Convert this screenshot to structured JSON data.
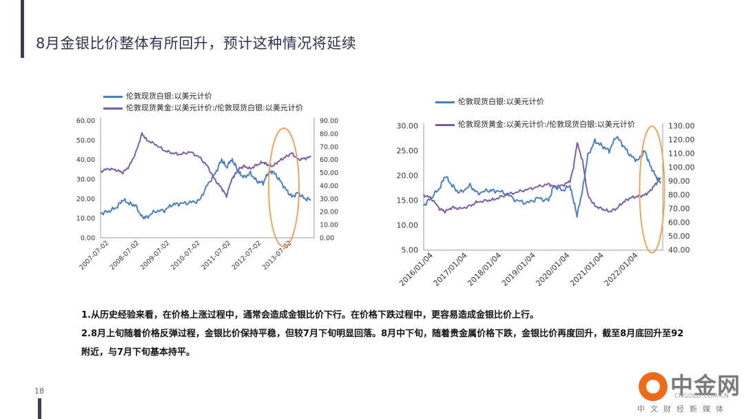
{
  "slide": {
    "title": "8月金银比价整体有所回升，预计这种情况将延续",
    "page_number": "18",
    "notes": [
      "1.从历史经验来看，在价格上涨过程中，通常会造成金银比价下行。在价格下跌过程中，更容易造成金银比价上行。",
      "2.8月上旬随着价格反弹过程，金银比价保持平稳，但较7月下旬明显回落。8月中下旬，随着贵金属价格下跌，金银比价再度回升，截至8月底回升至92附近，与7月下旬基本持平。"
    ]
  },
  "logo": {
    "name": "中金网",
    "url": "CNGOLD.COM.CN",
    "slogan": "中文财经新媒体"
  },
  "colors": {
    "silver_series": "#4a7ec2",
    "ratio_series": "#7b5ea6",
    "highlight_ellipse": "#f0a35c",
    "title": "#2c3550"
  },
  "chart_data": [
    {
      "id": "left",
      "type": "line",
      "legend": [
        "伦敦现货白银:以美元计价",
        "伦敦现货黄金:以美元计价:/伦敦现货白银:以美元计价"
      ],
      "x_tick_labels": [
        "2007-07-02",
        "2008-07-02",
        "2009-07-02",
        "2010-07-02",
        "2011-07-02",
        "2012-07-02",
        "2013-07-02"
      ],
      "x_range": [
        2007.5,
        2014.2
      ],
      "y_left": {
        "range": [
          0,
          60
        ],
        "ticks": [
          "0.00",
          "10.00",
          "20.00",
          "30.00",
          "40.00",
          "50.00",
          "60.00"
        ]
      },
      "y_right": {
        "range": [
          0,
          90
        ],
        "ticks": [
          "0.00",
          "10.00",
          "20.00",
          "30.00",
          "40.00",
          "50.00",
          "60.00",
          "70.00",
          "80.00",
          "90.00"
        ]
      },
      "grid": false,
      "legend_position": "top",
      "highlight": "ellipse around 2012-10 to 2013-09",
      "series": [
        {
          "name": "伦敦现货白银:以美元计价",
          "axis": "left",
          "x": [
            2007.5,
            2007.75,
            2008.0,
            2008.2,
            2008.4,
            2008.6,
            2008.8,
            2008.95,
            2009.2,
            2009.5,
            2009.75,
            2010.0,
            2010.3,
            2010.6,
            2010.85,
            2011.1,
            2011.3,
            2011.45,
            2011.6,
            2011.7,
            2011.85,
            2012.0,
            2012.2,
            2012.4,
            2012.6,
            2012.75,
            2012.9,
            2013.1,
            2013.3,
            2013.5,
            2013.7,
            2013.9,
            2014.1
          ],
          "y": [
            12.5,
            13.5,
            15.5,
            19.5,
            17.5,
            16.5,
            10.5,
            10.5,
            13.5,
            14,
            17,
            17.5,
            18,
            19,
            27,
            33,
            40,
            36,
            40,
            38,
            33,
            31,
            33,
            29,
            28,
            33,
            34,
            30,
            25,
            21,
            23,
            20,
            19.5
          ]
        },
        {
          "name": "伦敦现货黄金:以美元计价:/伦敦现货白银:以美元计价",
          "axis": "right",
          "x": [
            2007.5,
            2007.75,
            2008.0,
            2008.2,
            2008.4,
            2008.6,
            2008.8,
            2008.95,
            2009.2,
            2009.5,
            2009.75,
            2010.0,
            2010.3,
            2010.6,
            2010.85,
            2011.1,
            2011.3,
            2011.45,
            2011.6,
            2011.7,
            2011.85,
            2012.0,
            2012.2,
            2012.4,
            2012.6,
            2012.75,
            2012.9,
            2013.1,
            2013.3,
            2013.5,
            2013.7,
            2013.9,
            2014.1
          ],
          "y": [
            51,
            53,
            52,
            50,
            55,
            65,
            80,
            75,
            72,
            67,
            65,
            64,
            66,
            62,
            55,
            44,
            38,
            32,
            44,
            48,
            53,
            55,
            53,
            56,
            58,
            56,
            55,
            59,
            62,
            65,
            60,
            61,
            62
          ]
        }
      ]
    },
    {
      "id": "right",
      "type": "line",
      "legend": [
        "伦敦现货白银:以美元计价",
        "伦敦现货黄金:以美元计价:/伦敦现货白银:以美元计价"
      ],
      "x_tick_labels": [
        "2016/01/04",
        "2017/01/04",
        "2018/01/04",
        "2019/01/04",
        "2020/01/04",
        "2021/01/04",
        "2022/01/04"
      ],
      "x_range": [
        2016.0,
        2022.7
      ],
      "y_left": {
        "range": [
          5,
          30
        ],
        "ticks": [
          "5.00",
          "10.00",
          "15.00",
          "20.00",
          "25.00",
          "30.00"
        ]
      },
      "y_right": {
        "range": [
          40,
          130
        ],
        "ticks": [
          "40.00",
          "50.00",
          "60.00",
          "70.00",
          "80.00",
          "90.00",
          "100.00",
          "110.00",
          "120.00",
          "130.00"
        ]
      },
      "grid": false,
      "legend_position": "top",
      "highlight": "ellipse around 2022-02 to 2022-08",
      "series": [
        {
          "name": "伦敦现货白银:以美元计价",
          "axis": "left",
          "x": [
            2016.0,
            2016.2,
            2016.45,
            2016.6,
            2016.8,
            2017.0,
            2017.3,
            2017.5,
            2017.8,
            2018.0,
            2018.3,
            2018.6,
            2018.9,
            2019.2,
            2019.5,
            2019.65,
            2019.9,
            2020.1,
            2020.2,
            2020.3,
            2020.45,
            2020.6,
            2020.8,
            2021.0,
            2021.2,
            2021.4,
            2021.6,
            2021.8,
            2022.0,
            2022.2,
            2022.35,
            2022.5,
            2022.65
          ],
          "y": [
            14,
            15.5,
            17.5,
            20,
            18,
            16.5,
            18,
            16.5,
            17,
            17,
            16.5,
            15,
            14.5,
            15.5,
            15,
            18,
            17,
            18,
            15,
            12,
            17,
            24,
            27,
            26,
            25,
            28,
            26,
            24,
            23,
            25,
            22,
            20,
            18.5
          ]
        },
        {
          "name": "伦敦现货黄金:以美元计价:/伦敦现货白银:以美元计价",
          "axis": "right",
          "x": [
            2016.0,
            2016.2,
            2016.45,
            2016.6,
            2016.8,
            2017.0,
            2017.3,
            2017.5,
            2017.8,
            2018.0,
            2018.3,
            2018.6,
            2018.9,
            2019.2,
            2019.5,
            2019.65,
            2019.9,
            2020.1,
            2020.2,
            2020.3,
            2020.45,
            2020.6,
            2020.8,
            2021.0,
            2021.2,
            2021.4,
            2021.6,
            2021.8,
            2022.0,
            2022.2,
            2022.35,
            2022.5,
            2022.65
          ],
          "y": [
            80,
            78,
            70,
            68,
            71,
            70,
            72,
            75,
            76,
            77,
            80,
            82,
            84,
            86,
            88,
            86,
            87,
            90,
            100,
            118,
            105,
            80,
            72,
            70,
            68,
            70,
            75,
            78,
            79,
            80,
            83,
            88,
            92
          ]
        }
      ]
    }
  ]
}
